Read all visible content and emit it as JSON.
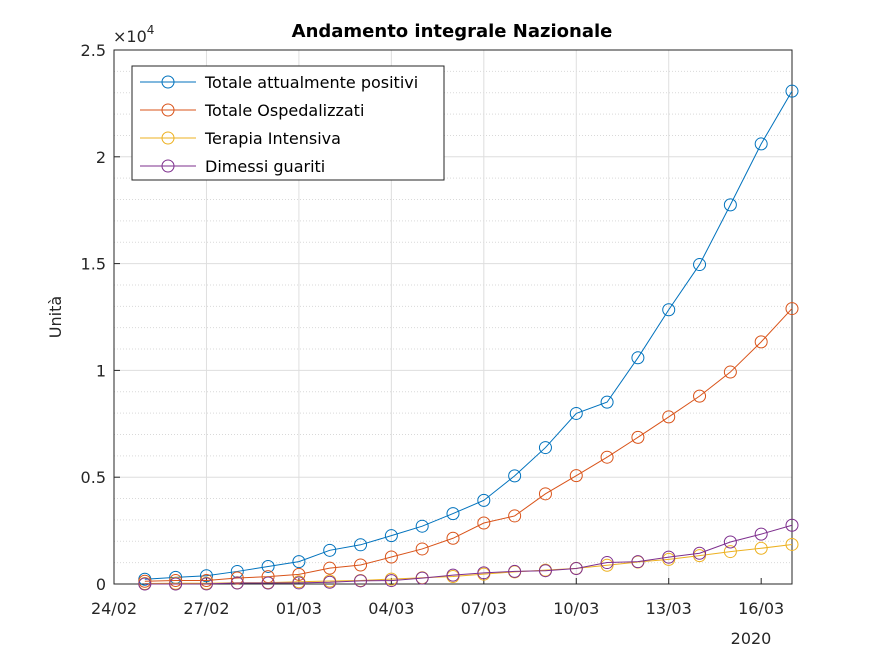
{
  "chart_data": {
    "type": "line",
    "title": "Andamento integrale Nazionale",
    "xlabel": "",
    "ylabel": "Unità",
    "x_ticks": [
      "24/02",
      "27/02",
      "01/03",
      "04/03",
      "07/03",
      "10/03",
      "13/03",
      "16/03"
    ],
    "x_secondary_label": "2020",
    "y_ticks": [
      "0",
      "0.5",
      "1",
      "1.5",
      "2",
      "2.5"
    ],
    "y_multiplier_base": "×10",
    "y_multiplier_exponent": "4",
    "ylim": [
      0,
      25000
    ],
    "grid": true,
    "minor_grid": true,
    "legend_position": "top-left",
    "x": [
      "2020-02-24",
      "2020-02-25",
      "2020-02-26",
      "2020-02-27",
      "2020-02-28",
      "2020-02-29",
      "2020-03-01",
      "2020-03-02",
      "2020-03-03",
      "2020-03-04",
      "2020-03-05",
      "2020-03-06",
      "2020-03-07",
      "2020-03-08",
      "2020-03-09",
      "2020-03-10",
      "2020-03-11",
      "2020-03-12",
      "2020-03-13",
      "2020-03-14",
      "2020-03-15",
      "2020-03-16"
    ],
    "series": [
      {
        "name": "Totale attualmente positivi",
        "color": "#0072BD",
        "values": [
          221,
          311,
          385,
          588,
          821,
          1049,
          1577,
          1835,
          2263,
          2706,
          3296,
          3916,
          5061,
          6387,
          7985,
          8514,
          10590,
          12839,
          14955,
          17750,
          20603,
          23073
        ]
      },
      {
        "name": "Totale Ospedalizzati",
        "color": "#D95319",
        "values": [
          128,
          162,
          162,
          282,
          344,
          452,
          741,
          888,
          1263,
          1641,
          2141,
          2856,
          3187,
          4222,
          5073,
          5936,
          6866,
          7822,
          8795,
          9923,
          11337,
          12894
        ]
      },
      {
        "name": "Terapia Intensiva",
        "color": "#EDB120",
        "values": [
          26,
          35,
          36,
          56,
          64,
          105,
          140,
          166,
          229,
          295,
          351,
          462,
          567,
          650,
          733,
          877,
          1028,
          1153,
          1328,
          1518,
          1672,
          1851
        ]
      },
      {
        "name": "Dimessi guariti",
        "color": "#7E2F8E",
        "values": [
          1,
          1,
          3,
          45,
          46,
          50,
          83,
          149,
          160,
          276,
          414,
          523,
          589,
          622,
          724,
          1004,
          1045,
          1258,
          1439,
          1966,
          2335,
          2749
        ]
      }
    ]
  }
}
